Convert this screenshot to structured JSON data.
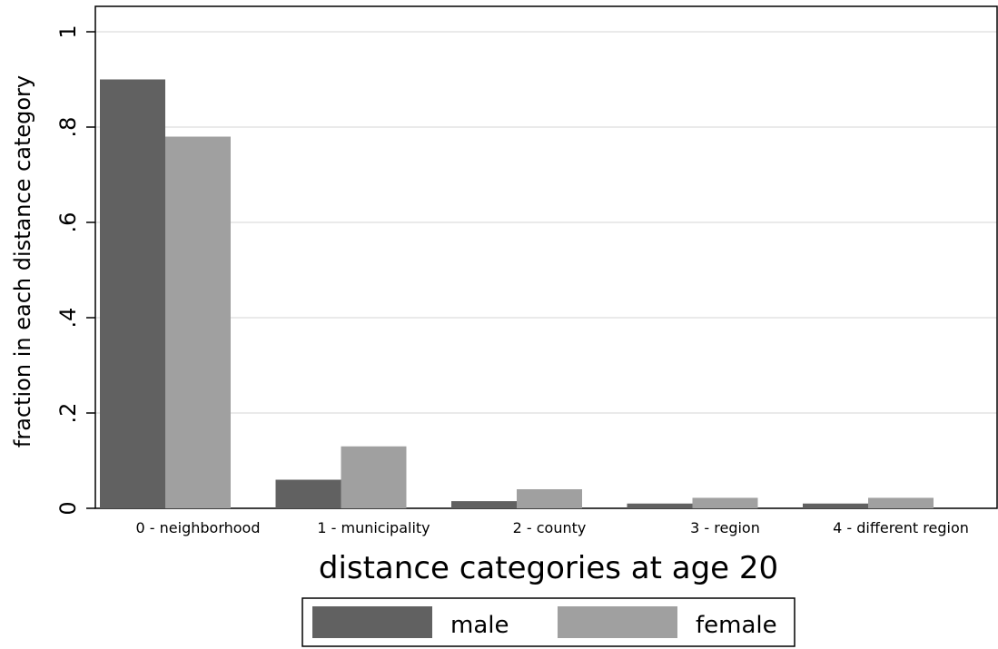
{
  "chart_data": {
    "type": "bar",
    "categories": [
      "0 - neighborhood",
      "1 - municipality",
      "2 - county",
      "3 - region",
      "4 - different region"
    ],
    "series": [
      {
        "name": "male",
        "color": "#616161",
        "values": [
          0.9,
          0.06,
          0.015,
          0.01,
          0.01
        ]
      },
      {
        "name": "female",
        "color": "#a0a0a0",
        "values": [
          0.78,
          0.13,
          0.04,
          0.022,
          0.022
        ]
      }
    ],
    "xlabel": "distance categories at age 20",
    "ylabel": "fraction in each distance category",
    "ylim": [
      0,
      1
    ],
    "yticks": [
      0,
      0.2,
      0.4,
      0.6,
      0.8,
      1
    ],
    "ytick_labels": [
      "0",
      ".2",
      ".4",
      ".6",
      ".8",
      "1"
    ],
    "grid": true,
    "legend_position": "bottom"
  }
}
